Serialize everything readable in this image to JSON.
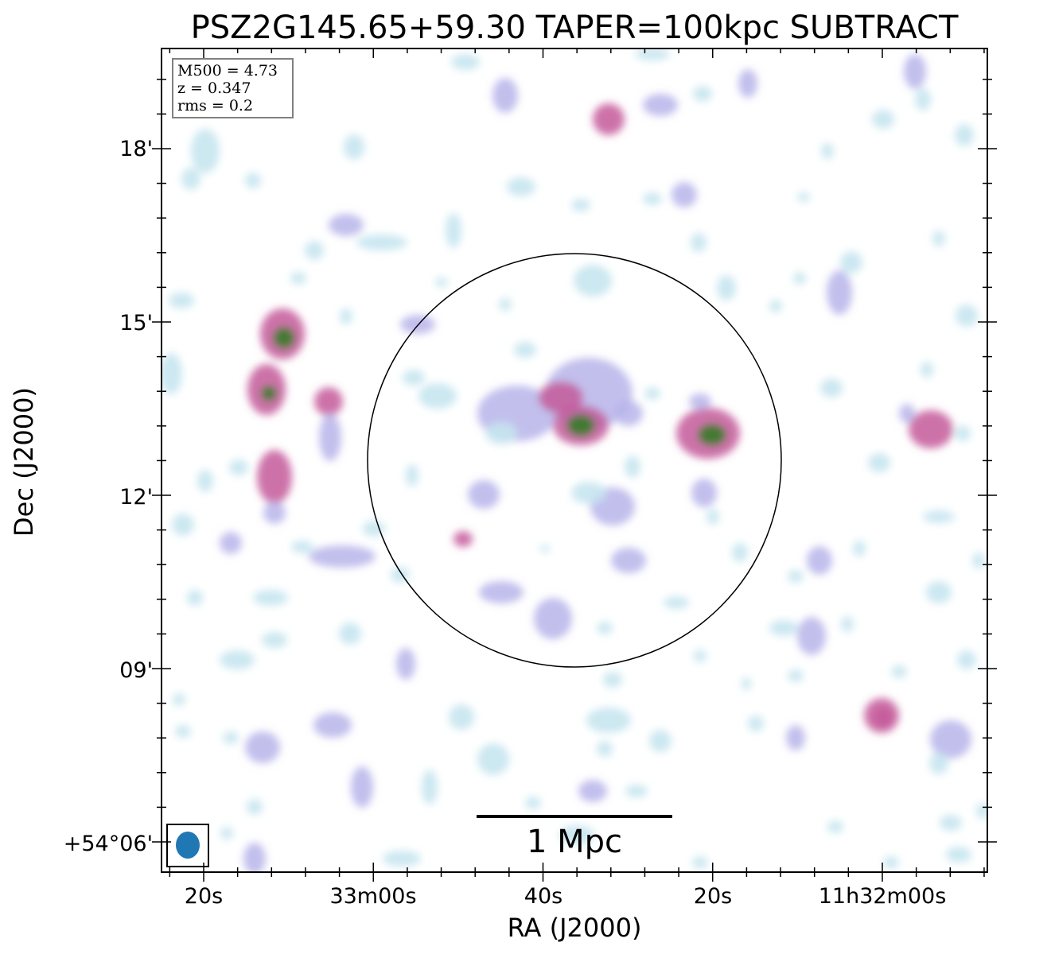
{
  "title": "PSZ2G145.65+59.30 TAPER=100kpc SUBTRACT",
  "x_axis": {
    "label": "RA (J2000)",
    "ticks": [
      "20s",
      "33m00s",
      "40s",
      "20s",
      "11h32m00s"
    ]
  },
  "y_axis": {
    "label": "Dec (J2000)",
    "ticks": [
      "18'",
      "15'",
      "12'",
      "09'",
      "+54°06'"
    ]
  },
  "info_box": {
    "m500": "M500 = 4.73",
    "z": "z = 0.347",
    "rms": "rms = 0.2"
  },
  "scale_bar": {
    "label": "1 Mpc"
  },
  "beam": {
    "shape": "filled ellipse",
    "color": "#1f77b4"
  },
  "colormap": {
    "low": "#c6e6ef",
    "mid": "#b7b4ea",
    "high": "#c45a9a",
    "peak": "#2e7d1e"
  },
  "aperture": {
    "shape": "circle"
  }
}
